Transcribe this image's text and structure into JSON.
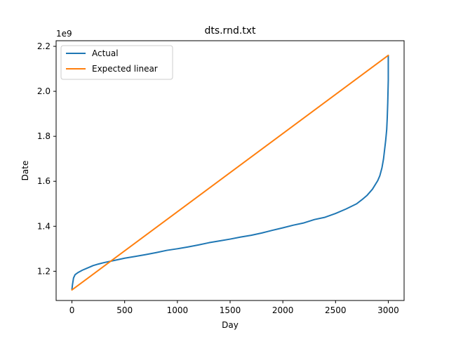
{
  "chart_data": {
    "type": "line",
    "title": "dts.rnd.txt",
    "xlabel": "Day",
    "ylabel": "Date",
    "y_offset_text": "1e9",
    "xlim": [
      -150,
      3150
    ],
    "ylim": [
      1.07,
      2.225
    ],
    "xticks": [
      0,
      500,
      1000,
      1500,
      2000,
      2500,
      3000
    ],
    "yticks": [
      1.2,
      1.4,
      1.6,
      1.8,
      2.0,
      2.2
    ],
    "legend": {
      "position": "upper-left"
    },
    "grid": false,
    "series": [
      {
        "name": "Actual",
        "color": "#1f77b4",
        "x": [
          0,
          5,
          15,
          30,
          60,
          100,
          150,
          200,
          250,
          300,
          400,
          500,
          600,
          700,
          800,
          900,
          1000,
          1100,
          1200,
          1300,
          1400,
          1500,
          1600,
          1700,
          1800,
          1900,
          2000,
          2100,
          2200,
          2300,
          2400,
          2500,
          2600,
          2700,
          2750,
          2800,
          2850,
          2900,
          2920,
          2940,
          2955,
          2965,
          2975,
          2985,
          2990,
          2995,
          3000,
          3000
        ],
        "y": [
          1.12,
          1.14,
          1.17,
          1.185,
          1.195,
          1.205,
          1.215,
          1.225,
          1.232,
          1.238,
          1.248,
          1.258,
          1.266,
          1.274,
          1.283,
          1.293,
          1.3,
          1.308,
          1.317,
          1.327,
          1.335,
          1.343,
          1.352,
          1.36,
          1.37,
          1.382,
          1.393,
          1.405,
          1.415,
          1.43,
          1.44,
          1.457,
          1.477,
          1.5,
          1.518,
          1.538,
          1.565,
          1.603,
          1.625,
          1.66,
          1.7,
          1.74,
          1.78,
          1.83,
          1.88,
          1.95,
          2.05,
          2.16
        ]
      },
      {
        "name": "Expected linear",
        "color": "#ff7f0e",
        "x": [
          0,
          3000
        ],
        "y": [
          1.117,
          2.16
        ]
      }
    ]
  }
}
